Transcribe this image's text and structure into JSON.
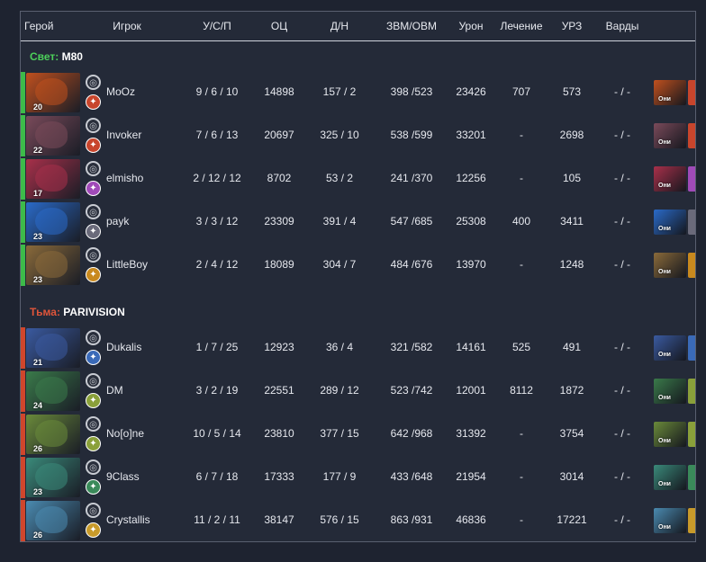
{
  "header": {
    "hero": "Герой",
    "player": "Игрок",
    "kda": "У/С/П",
    "nw": "ОЦ",
    "lhdn": "Д/Н",
    "gpmxpm": "ЗВМ/ОВМ",
    "damage": "Урон",
    "heal": "Лечение",
    "towerdmg": "УРЗ",
    "wards": "Варды"
  },
  "radiant": {
    "side": "Свет:",
    "team": "M80",
    "players": [
      {
        "level": "20",
        "name": "MoOz",
        "kda": "9 / 6 / 10",
        "nw": "14898",
        "lhdn": "157 / 2",
        "gx": "398 /523",
        "damage": "23426",
        "heal": "707",
        "tower": "573",
        "wards": "- / -",
        "color": "#c0501e",
        "item_tag": "Они"
      },
      {
        "level": "22",
        "name": "Invoker",
        "kda": "7 / 6 / 13",
        "nw": "20697",
        "lhdn": "325 / 10",
        "gx": "538 /599",
        "damage": "33201",
        "heal": "-",
        "tower": "2698",
        "wards": "- / -",
        "color": "#7a4a5a",
        "item_tag": "Они"
      },
      {
        "level": "17",
        "name": "elmisho",
        "kda": "2 / 12 / 12",
        "nw": "8702",
        "lhdn": "53 / 2",
        "gx": "241 /370",
        "damage": "12256",
        "heal": "-",
        "tower": "105",
        "wards": "- / -",
        "color": "#a8304a",
        "item_tag": "Они"
      },
      {
        "level": "23",
        "name": "payk",
        "kda": "3 / 3 / 12",
        "nw": "23309",
        "lhdn": "391 / 4",
        "gx": "547 /685",
        "damage": "25308",
        "heal": "400",
        "tower": "3411",
        "wards": "- / -",
        "color": "#2a6ac8",
        "item_tag": "Они"
      },
      {
        "level": "23",
        "name": "LittleBoy",
        "kda": "2 / 4 / 12",
        "nw": "18089",
        "lhdn": "304 / 7",
        "gx": "484 /676",
        "damage": "13970",
        "heal": "-",
        "tower": "1248",
        "wards": "- / -",
        "color": "#8a6a3a",
        "item_tag": "Они"
      }
    ]
  },
  "dire": {
    "side": "Тьма:",
    "team": "PARIVISION",
    "players": [
      {
        "level": "21",
        "name": "Dukalis",
        "kda": "1 / 7 / 25",
        "nw": "12923",
        "lhdn": "36 / 4",
        "gx": "321 /582",
        "damage": "14161",
        "heal": "525",
        "tower": "491",
        "wards": "- / -",
        "color": "#3a5aa0",
        "item_tag": "Они"
      },
      {
        "level": "24",
        "name": "DM",
        "kda": "3 / 2 / 19",
        "nw": "22551",
        "lhdn": "289 / 12",
        "gx": "523 /742",
        "damage": "12001",
        "heal": "8112",
        "tower": "1872",
        "wards": "- / -",
        "color": "#3a7a4a",
        "item_tag": "Они"
      },
      {
        "level": "26",
        "name": "No[o]ne",
        "kda": "10 / 5 / 14",
        "nw": "23810",
        "lhdn": "377 / 15",
        "gx": "642 /968",
        "damage": "31392",
        "heal": "-",
        "tower": "3754",
        "wards": "- / -",
        "color": "#6a8a3a",
        "item_tag": "Они"
      },
      {
        "level": "23",
        "name": "9Class",
        "kda": "6 / 7 / 18",
        "nw": "17333",
        "lhdn": "177 / 9",
        "gx": "433 /648",
        "damage": "21954",
        "heal": "-",
        "tower": "3014",
        "wards": "- / -",
        "color": "#3a8a7a",
        "item_tag": "Они"
      },
      {
        "level": "26",
        "name": "Crystallis",
        "kda": "11 / 2 / 11",
        "nw": "38147",
        "lhdn": "576 / 15",
        "gx": "863 /931",
        "damage": "46836",
        "heal": "-",
        "tower": "17221",
        "wards": "- / -",
        "color": "#4a8ab0",
        "item_tag": "Они"
      }
    ]
  },
  "icons": {
    "role_icon": "aegis-icon",
    "ability_icon": "ability-icon"
  },
  "colors": {
    "radiant": "#3dbb4a",
    "dire": "#d0462c",
    "ability_bg": [
      "#c8452c",
      "#c8452c",
      "#a04ab8",
      "#6a6a7a",
      "#c8891e",
      "#3a6ab8",
      "#8aa03a",
      "#8aa03a",
      "#3a8a5a",
      "#c89a2a"
    ]
  }
}
